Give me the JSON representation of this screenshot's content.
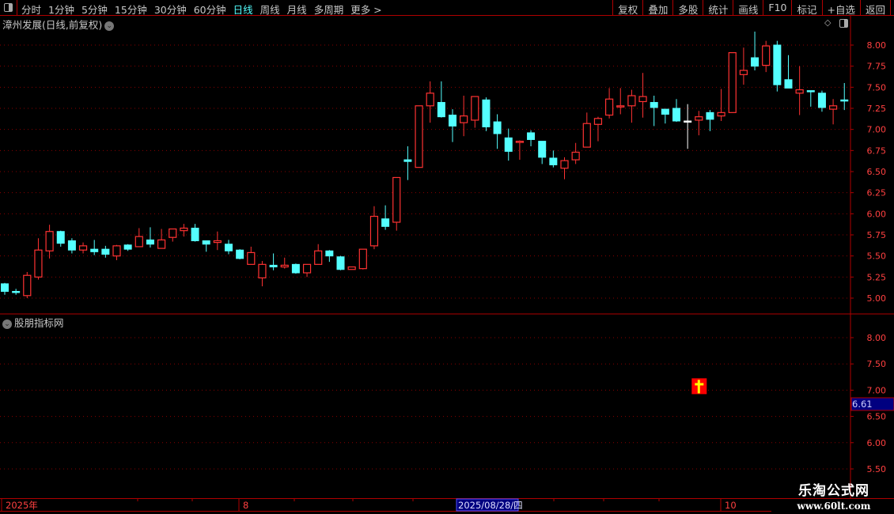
{
  "toolbar": {
    "periods": [
      "分时",
      "1分钟",
      "5分钟",
      "15分钟",
      "30分钟",
      "60分钟",
      "日线",
      "周线",
      "月线",
      "多周期",
      "更多 >"
    ],
    "active_period": "日线",
    "buttons": [
      "复权",
      "叠加",
      "多股",
      "统计",
      "画线",
      "F10",
      "标记",
      "+自选",
      "返回"
    ]
  },
  "main": {
    "title": "漳州发展(日线,前复权)",
    "y_ticks": [
      "8.00",
      "7.75",
      "7.50",
      "7.25",
      "7.00",
      "6.75",
      "6.50",
      "6.25",
      "6.00",
      "5.75",
      "5.50",
      "5.25",
      "5.00"
    ]
  },
  "indicator": {
    "title": "股朋指标网",
    "y_ticks": [
      "8.00",
      "7.50",
      "7.00",
      "6.50",
      "6.00",
      "5.50"
    ],
    "current_value": "6.61",
    "signal_icon": "yellow-cross-on-red-square",
    "signal_candle_index": 62,
    "signal_value": 7.0
  },
  "date_axis": {
    "labels": [
      "2025年",
      "8",
      "10"
    ],
    "cursor_date": "2025/08/28/四"
  },
  "colors": {
    "up": "#ff3232",
    "down": "#54ffff",
    "flat": "#ffffff",
    "grid": "#8a0000",
    "axis_text": "#ff4040",
    "border": "#b00000",
    "cursor_bg": "#000080"
  },
  "watermark": {
    "name": "乐淘公式网",
    "url": "www.60lt.com"
  },
  "chart_data": {
    "type": "candlestick",
    "ylim": [
      4.85,
      8.2
    ],
    "candles_ohlc": [
      [
        5.17,
        5.18,
        5.04,
        5.08
      ],
      [
        5.08,
        5.11,
        5.04,
        5.07
      ],
      [
        5.03,
        5.31,
        5.0,
        5.27
      ],
      [
        5.25,
        5.71,
        5.22,
        5.57
      ],
      [
        5.56,
        5.87,
        5.47,
        5.79
      ],
      [
        5.79,
        5.8,
        5.61,
        5.65
      ],
      [
        5.68,
        5.71,
        5.53,
        5.57
      ],
      [
        5.57,
        5.66,
        5.53,
        5.62
      ],
      [
        5.58,
        5.69,
        5.51,
        5.55
      ],
      [
        5.58,
        5.62,
        5.48,
        5.52
      ],
      [
        5.5,
        5.63,
        5.45,
        5.62
      ],
      [
        5.63,
        5.64,
        5.56,
        5.58
      ],
      [
        5.61,
        5.83,
        5.61,
        5.73
      ],
      [
        5.69,
        5.84,
        5.6,
        5.64
      ],
      [
        5.59,
        5.82,
        5.59,
        5.69
      ],
      [
        5.72,
        5.82,
        5.67,
        5.82
      ],
      [
        5.8,
        5.88,
        5.73,
        5.83
      ],
      [
        5.83,
        5.88,
        5.67,
        5.68
      ],
      [
        5.68,
        5.68,
        5.55,
        5.64
      ],
      [
        5.66,
        5.79,
        5.57,
        5.68
      ],
      [
        5.64,
        5.69,
        5.52,
        5.56
      ],
      [
        5.57,
        5.58,
        5.46,
        5.47
      ],
      [
        5.4,
        5.61,
        5.4,
        5.54
      ],
      [
        5.24,
        5.44,
        5.14,
        5.4
      ],
      [
        5.39,
        5.53,
        5.33,
        5.37
      ],
      [
        5.37,
        5.48,
        5.35,
        5.39
      ],
      [
        5.4,
        5.41,
        5.29,
        5.3
      ],
      [
        5.3,
        5.4,
        5.25,
        5.4
      ],
      [
        5.4,
        5.64,
        5.4,
        5.56
      ],
      [
        5.56,
        5.57,
        5.43,
        5.5
      ],
      [
        5.49,
        5.5,
        5.33,
        5.34
      ],
      [
        5.34,
        5.37,
        5.34,
        5.37
      ],
      [
        5.35,
        5.58,
        5.34,
        5.58
      ],
      [
        5.62,
        6.09,
        5.58,
        5.97
      ],
      [
        5.94,
        6.1,
        5.81,
        5.85
      ],
      [
        5.9,
        6.43,
        5.8,
        6.43
      ],
      [
        6.64,
        6.8,
        6.4,
        6.62
      ],
      [
        6.55,
        7.28,
        6.55,
        7.28
      ],
      [
        7.28,
        7.57,
        7.08,
        7.43
      ],
      [
        7.32,
        7.57,
        7.14,
        7.15
      ],
      [
        7.17,
        7.24,
        6.85,
        7.04
      ],
      [
        7.08,
        7.4,
        6.92,
        7.16
      ],
      [
        7.11,
        7.39,
        7.02,
        7.39
      ],
      [
        7.35,
        7.38,
        6.98,
        7.03
      ],
      [
        7.09,
        7.18,
        6.77,
        6.95
      ],
      [
        6.9,
        7.01,
        6.63,
        6.74
      ],
      [
        6.85,
        6.87,
        6.64,
        6.86
      ],
      [
        6.96,
        6.99,
        6.8,
        6.88
      ],
      [
        6.86,
        6.86,
        6.59,
        6.67
      ],
      [
        6.66,
        6.75,
        6.55,
        6.58
      ],
      [
        6.54,
        6.67,
        6.41,
        6.63
      ],
      [
        6.64,
        6.84,
        6.59,
        6.73
      ],
      [
        6.79,
        7.2,
        6.79,
        7.07
      ],
      [
        7.06,
        7.15,
        6.86,
        7.13
      ],
      [
        7.17,
        7.49,
        7.13,
        7.36
      ],
      [
        7.27,
        7.49,
        7.18,
        7.28
      ],
      [
        7.28,
        7.47,
        7.08,
        7.4
      ],
      [
        7.33,
        7.67,
        7.14,
        7.39
      ],
      [
        7.32,
        7.4,
        7.04,
        7.26
      ],
      [
        7.24,
        7.24,
        7.07,
        7.18
      ],
      [
        7.25,
        7.36,
        7.09,
        7.1
      ],
      [
        7.1,
        7.3,
        6.77,
        7.1
      ],
      [
        7.11,
        7.22,
        6.93,
        7.15
      ],
      [
        7.2,
        7.23,
        6.98,
        7.12
      ],
      [
        7.16,
        7.48,
        7.1,
        7.2
      ],
      [
        7.2,
        7.91,
        7.2,
        7.91
      ],
      [
        7.65,
        7.97,
        7.53,
        7.7
      ],
      [
        7.85,
        8.16,
        7.7,
        7.75
      ],
      [
        7.76,
        8.05,
        7.68,
        7.99
      ],
      [
        8.0,
        8.05,
        7.45,
        7.53
      ],
      [
        7.59,
        7.88,
        7.49,
        7.49
      ],
      [
        7.43,
        7.75,
        7.17,
        7.47
      ],
      [
        7.46,
        7.46,
        7.27,
        7.45
      ],
      [
        7.43,
        7.46,
        7.21,
        7.26
      ],
      [
        7.24,
        7.36,
        7.06,
        7.28
      ],
      [
        7.35,
        7.55,
        7.23,
        7.34
      ]
    ]
  }
}
